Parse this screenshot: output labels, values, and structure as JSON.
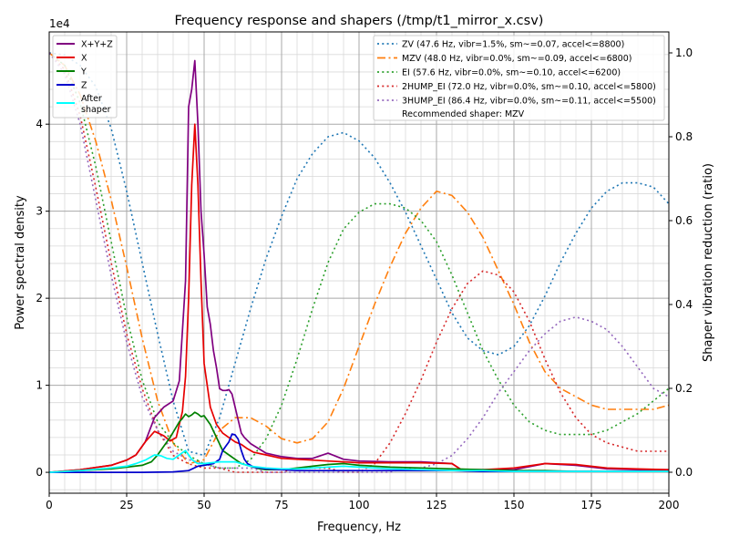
{
  "chart_data": {
    "type": "line",
    "title": "Frequency response and shapers (/tmp/t1_mirror_x.csv)",
    "xlabel": "Frequency, Hz",
    "ylabel": "Power spectral density",
    "ylabel_right": "Shaper vibration reduction (ratio)",
    "y_scale_label": "1e4",
    "xlim": [
      0,
      200
    ],
    "ylim": [
      -2400,
      50600
    ],
    "ylim_right": [
      -0.05,
      1.05
    ],
    "grid": true,
    "x_ticks": [
      "0",
      "25",
      "50",
      "75",
      "100",
      "125",
      "150",
      "175",
      "200"
    ],
    "y_ticks": [
      "0",
      "1",
      "2",
      "3",
      "4"
    ],
    "y_ticks_right": [
      "0.0",
      "0.2",
      "0.4",
      "0.6",
      "0.8",
      "1.0"
    ],
    "legend_left": {
      "placement": "upper-left",
      "entries": [
        "X+Y+Z",
        "X",
        "Y",
        "Z",
        "After\nshaper"
      ]
    },
    "legend_right": {
      "placement": "upper-right",
      "footer": "Recommended shaper: MZV"
    },
    "psd_series": [
      {
        "name": "X+Y+Z",
        "color": "#800080",
        "x": [
          0,
          10,
          20,
          25,
          28,
          31,
          34,
          37,
          40,
          42,
          44,
          45,
          46,
          47,
          48,
          49,
          50,
          51,
          52,
          53,
          54,
          55,
          56,
          57,
          58,
          59,
          60,
          61,
          62,
          63,
          65,
          70,
          75,
          80,
          85,
          90,
          95,
          100,
          110,
          120,
          130,
          133,
          140,
          150,
          160,
          170,
          180,
          190,
          200
        ],
        "y": [
          0,
          300,
          800,
          1400,
          2000,
          3500,
          6300,
          7500,
          8200,
          10500,
          22000,
          42000,
          44000,
          47300,
          40000,
          30000,
          25000,
          19000,
          17000,
          14000,
          12000,
          9600,
          9400,
          9400,
          9500,
          9000,
          7500,
          6000,
          4500,
          4000,
          3300,
          2200,
          1800,
          1600,
          1600,
          2200,
          1500,
          1300,
          1200,
          1200,
          1000,
          300,
          300,
          300,
          1000,
          800,
          400,
          300,
          300
        ]
      },
      {
        "name": "X",
        "color": "#e60000",
        "x": [
          0,
          10,
          20,
          25,
          28,
          31,
          34,
          37,
          39,
          41,
          43,
          44,
          45,
          46,
          47,
          48,
          49,
          50,
          51,
          52,
          54,
          56,
          58,
          60,
          62,
          64,
          66,
          70,
          75,
          80,
          85,
          90,
          95,
          100,
          110,
          120,
          130,
          133,
          140,
          150,
          160,
          170,
          180,
          190,
          200
        ],
        "y": [
          0,
          300,
          800,
          1400,
          2000,
          3500,
          4700,
          4200,
          3600,
          4000,
          7000,
          11000,
          20000,
          33000,
          40000,
          33000,
          22000,
          12500,
          10000,
          7500,
          5500,
          4500,
          4000,
          3500,
          3200,
          2700,
          2300,
          2000,
          1600,
          1500,
          1400,
          1300,
          1200,
          1100,
          1100,
          1100,
          1000,
          300,
          300,
          500,
          1000,
          900,
          500,
          400,
          300
        ]
      },
      {
        "name": "Y",
        "color": "#008000",
        "x": [
          0,
          10,
          20,
          25,
          30,
          33,
          35,
          37,
          39,
          41,
          42,
          43,
          44,
          45,
          46,
          47,
          48,
          49,
          50,
          52,
          54,
          56,
          58,
          60,
          62,
          64,
          66,
          68,
          70,
          75,
          80,
          85,
          90,
          95,
          100,
          110,
          120,
          130,
          140,
          150,
          160,
          170,
          180,
          190,
          200
        ],
        "y": [
          0,
          200,
          400,
          600,
          800,
          1200,
          2000,
          3000,
          4000,
          5200,
          5800,
          6200,
          6700,
          6400,
          6600,
          6900,
          6700,
          6400,
          6500,
          5500,
          4000,
          2500,
          2000,
          1500,
          1000,
          800,
          600,
          400,
          300,
          300,
          500,
          700,
          900,
          1000,
          800,
          600,
          500,
          400,
          300,
          200,
          200,
          100,
          100,
          100,
          100
        ]
      },
      {
        "name": "Z",
        "color": "#0000cc",
        "x": [
          0,
          10,
          20,
          30,
          40,
          45,
          48,
          50,
          53,
          55,
          56,
          57,
          58,
          59,
          60,
          61,
          62,
          63,
          64,
          66,
          70,
          80,
          90,
          100,
          110,
          120,
          130,
          140,
          150,
          160,
          170,
          180,
          190,
          200
        ],
        "y": [
          0,
          0,
          0,
          0,
          50,
          200,
          700,
          800,
          1000,
          1500,
          2500,
          3000,
          3500,
          4400,
          4300,
          3800,
          2500,
          1500,
          1000,
          600,
          400,
          200,
          200,
          200,
          200,
          200,
          200,
          100,
          100,
          100,
          100,
          100,
          100,
          100
        ]
      },
      {
        "name": "After\nshaper",
        "color": "#00ffff",
        "x": [
          0,
          10,
          20,
          25,
          28,
          31,
          34,
          36,
          38,
          40,
          42,
          44,
          45,
          46,
          47,
          48,
          50,
          55,
          60,
          65,
          70,
          75,
          80,
          85,
          90,
          95,
          100,
          110,
          120,
          130,
          140,
          150,
          160,
          170,
          180,
          190,
          200
        ],
        "y": [
          0,
          200,
          500,
          700,
          1000,
          1400,
          2000,
          1900,
          1600,
          1500,
          2000,
          2500,
          2000,
          1500,
          1200,
          1000,
          1000,
          1200,
          1200,
          700,
          500,
          400,
          400,
          500,
          600,
          700,
          600,
          400,
          300,
          200,
          200,
          100,
          100,
          100,
          100,
          100,
          100
        ]
      }
    ],
    "shaper_series": [
      {
        "name": "ZV (47.6 Hz, vibr=1.5%, sm~=0.07, accel<=8800)",
        "color": "#1f77b4",
        "dash": "dotted",
        "x": [
          0,
          5,
          10,
          15,
          20,
          25,
          30,
          35,
          40,
          45,
          50,
          55,
          60,
          65,
          70,
          75,
          80,
          85,
          90,
          95,
          100,
          105,
          110,
          115,
          120,
          125,
          130,
          135,
          140,
          145,
          150,
          155,
          160,
          165,
          170,
          175,
          180,
          185,
          190,
          195,
          200
        ],
        "y": [
          1.0,
          0.995,
          0.97,
          0.92,
          0.82,
          0.67,
          0.5,
          0.33,
          0.17,
          0.05,
          0.04,
          0.13,
          0.26,
          0.39,
          0.51,
          0.61,
          0.7,
          0.76,
          0.8,
          0.81,
          0.79,
          0.75,
          0.69,
          0.62,
          0.54,
          0.46,
          0.38,
          0.32,
          0.29,
          0.28,
          0.3,
          0.35,
          0.42,
          0.5,
          0.57,
          0.63,
          0.67,
          0.69,
          0.69,
          0.68,
          0.64
        ]
      },
      {
        "name": "MZV (48.0 Hz, vibr=0.0%, sm~=0.09, accel<=6800)",
        "color": "#ff7f0e",
        "dash": "dashdot",
        "x": [
          0,
          5,
          10,
          15,
          20,
          25,
          30,
          35,
          40,
          45,
          50,
          55,
          60,
          65,
          70,
          75,
          80,
          85,
          90,
          95,
          100,
          105,
          110,
          115,
          120,
          125,
          130,
          135,
          140,
          145,
          150,
          155,
          160,
          165,
          170,
          175,
          180,
          185,
          190,
          195,
          200
        ],
        "y": [
          1.0,
          0.97,
          0.9,
          0.79,
          0.65,
          0.49,
          0.32,
          0.17,
          0.07,
          0.02,
          0.03,
          0.1,
          0.13,
          0.13,
          0.11,
          0.08,
          0.07,
          0.08,
          0.12,
          0.2,
          0.3,
          0.4,
          0.49,
          0.57,
          0.63,
          0.67,
          0.66,
          0.62,
          0.56,
          0.48,
          0.4,
          0.31,
          0.24,
          0.2,
          0.18,
          0.16,
          0.15,
          0.15,
          0.15,
          0.15,
          0.16
        ]
      },
      {
        "name": "EI (57.6 Hz, vibr=0.0%, sm~=0.10, accel<=6200)",
        "color": "#2ca02c",
        "dash": "dotted",
        "x": [
          0,
          5,
          10,
          15,
          20,
          25,
          30,
          35,
          40,
          45,
          50,
          55,
          60,
          65,
          70,
          75,
          80,
          85,
          90,
          95,
          100,
          105,
          110,
          115,
          120,
          125,
          130,
          135,
          140,
          145,
          150,
          155,
          160,
          165,
          170,
          175,
          180,
          185,
          190,
          195,
          200
        ],
        "y": [
          1.0,
          0.97,
          0.88,
          0.73,
          0.55,
          0.37,
          0.22,
          0.12,
          0.07,
          0.04,
          0.02,
          0.01,
          0.01,
          0.03,
          0.08,
          0.16,
          0.27,
          0.39,
          0.5,
          0.58,
          0.62,
          0.64,
          0.64,
          0.63,
          0.6,
          0.55,
          0.47,
          0.38,
          0.29,
          0.22,
          0.16,
          0.12,
          0.1,
          0.09,
          0.09,
          0.09,
          0.1,
          0.12,
          0.14,
          0.17,
          0.2
        ]
      },
      {
        "name": "2HUMP_EI (72.0 Hz, vibr=0.0%, sm~=0.10, accel<=5800)",
        "color": "#d62728",
        "dash": "dotted",
        "x": [
          0,
          5,
          10,
          15,
          20,
          25,
          30,
          35,
          40,
          45,
          50,
          55,
          60,
          65,
          70,
          75,
          80,
          85,
          90,
          95,
          100,
          105,
          110,
          115,
          120,
          125,
          130,
          135,
          140,
          145,
          150,
          155,
          160,
          165,
          170,
          175,
          180,
          185,
          190,
          195,
          200
        ],
        "y": [
          1.0,
          0.96,
          0.85,
          0.68,
          0.5,
          0.33,
          0.2,
          0.1,
          0.04,
          0.02,
          0.01,
          0.01,
          0.0,
          0.0,
          0.0,
          0.0,
          0.01,
          0.01,
          0.01,
          0.0,
          0.0,
          0.02,
          0.07,
          0.14,
          0.22,
          0.31,
          0.39,
          0.45,
          0.48,
          0.47,
          0.43,
          0.36,
          0.27,
          0.19,
          0.13,
          0.09,
          0.07,
          0.06,
          0.05,
          0.05,
          0.05
        ]
      },
      {
        "name": "3HUMP_EI (86.4 Hz, vibr=0.0%, sm~=0.11, accel<=5500)",
        "color": "#9467bd",
        "dash": "dotted",
        "x": [
          0,
          5,
          10,
          15,
          20,
          25,
          30,
          35,
          40,
          45,
          50,
          55,
          60,
          65,
          70,
          75,
          80,
          85,
          90,
          95,
          100,
          105,
          110,
          115,
          120,
          125,
          130,
          135,
          140,
          145,
          150,
          155,
          160,
          165,
          170,
          175,
          180,
          185,
          190,
          195,
          200
        ],
        "y": [
          1.0,
          0.95,
          0.83,
          0.65,
          0.47,
          0.31,
          0.18,
          0.1,
          0.05,
          0.03,
          0.02,
          0.01,
          0.01,
          0.01,
          0.0,
          0.0,
          0.0,
          0.0,
          0.0,
          0.0,
          0.0,
          0.0,
          0.0,
          0.01,
          0.01,
          0.02,
          0.04,
          0.08,
          0.13,
          0.19,
          0.24,
          0.29,
          0.33,
          0.36,
          0.37,
          0.36,
          0.34,
          0.3,
          0.25,
          0.2,
          0.18
        ]
      }
    ]
  }
}
